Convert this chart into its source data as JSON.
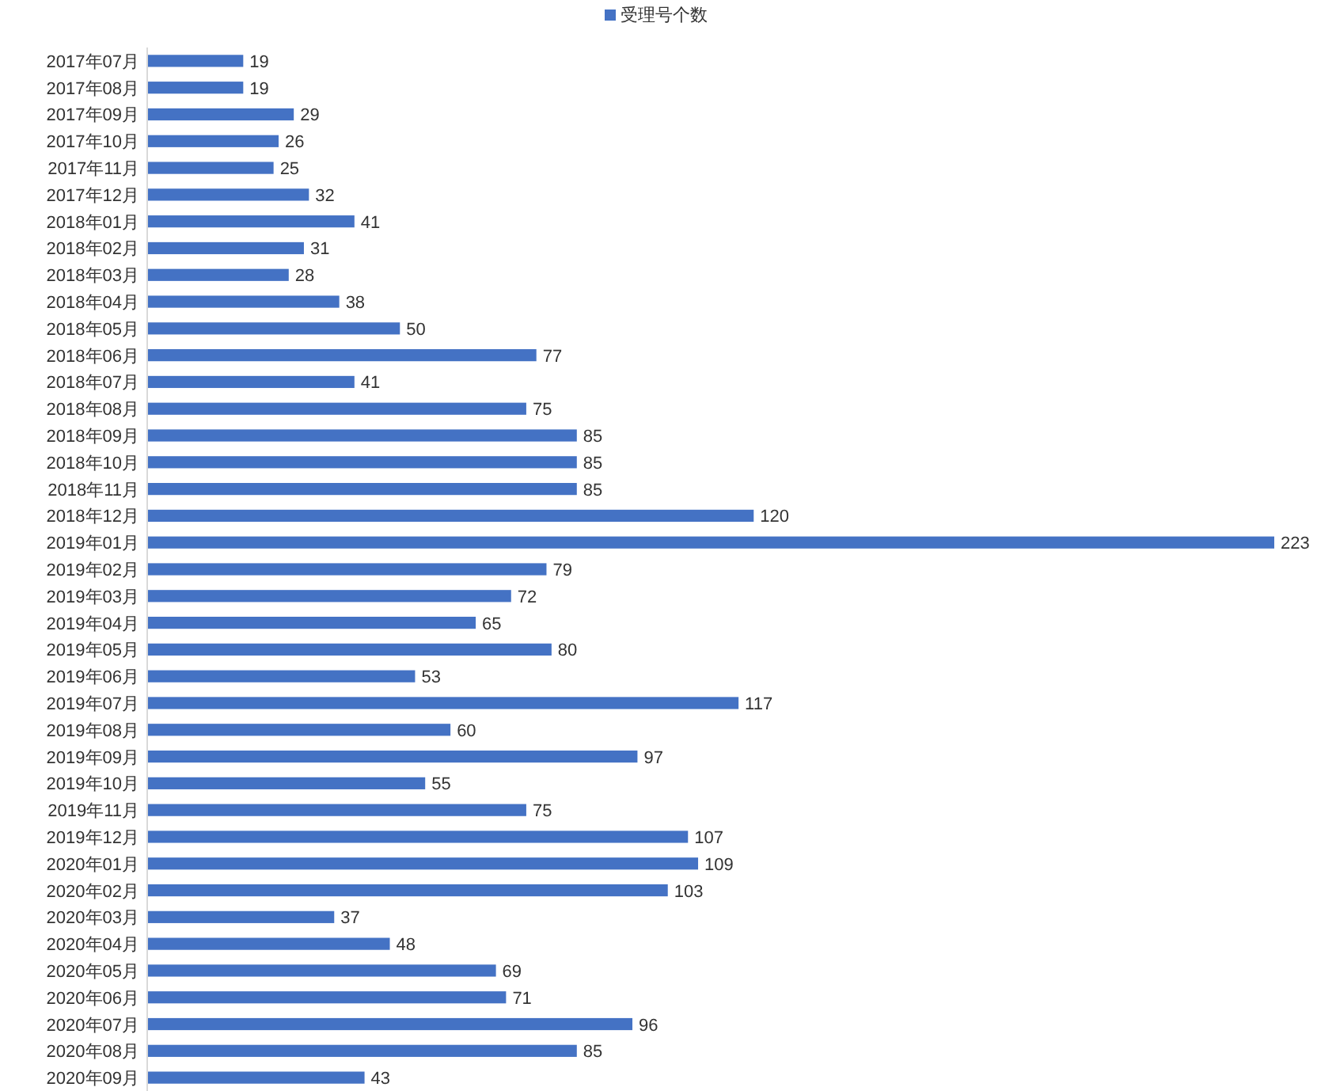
{
  "chart_data": {
    "type": "bar",
    "orientation": "horizontal",
    "legend": "top",
    "data_labels": true,
    "categories": [
      "2017年07月",
      "2017年08月",
      "2017年09月",
      "2017年10月",
      "2017年11月",
      "2017年12月",
      "2018年01月",
      "2018年02月",
      "2018年03月",
      "2018年04月",
      "2018年05月",
      "2018年06月",
      "2018年07月",
      "2018年08月",
      "2018年09月",
      "2018年10月",
      "2018年11月",
      "2018年12月",
      "2019年01月",
      "2019年02月",
      "2019年03月",
      "2019年04月",
      "2019年05月",
      "2019年06月",
      "2019年07月",
      "2019年08月",
      "2019年09月",
      "2019年10月",
      "2019年11月",
      "2019年12月",
      "2020年01月",
      "2020年02月",
      "2020年03月",
      "2020年04月",
      "2020年05月",
      "2020年06月",
      "2020年07月",
      "2020年08月",
      "2020年09月"
    ],
    "series": [
      {
        "name": "受理号个数",
        "color": "#4472c4",
        "values": [
          19,
          19,
          29,
          26,
          25,
          32,
          41,
          31,
          28,
          38,
          50,
          77,
          41,
          75,
          85,
          85,
          85,
          120,
          223,
          79,
          72,
          65,
          80,
          53,
          117,
          60,
          97,
          55,
          75,
          107,
          109,
          103,
          37,
          48,
          69,
          71,
          96,
          85,
          43
        ]
      }
    ]
  }
}
